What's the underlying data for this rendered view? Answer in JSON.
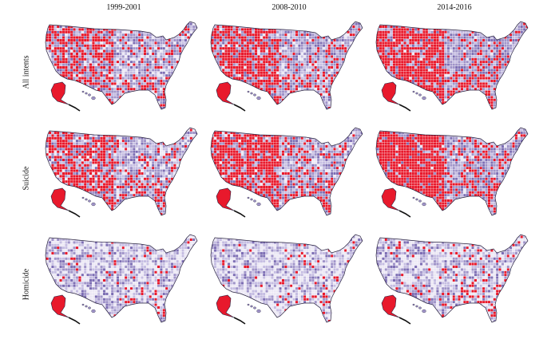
{
  "figure": {
    "columns": [
      "1999-2001",
      "2008-2010",
      "2014-2016"
    ],
    "rows": [
      "All intents",
      "Suicide",
      "Homicide"
    ],
    "colors": {
      "low": "#ece8f5",
      "mid_low": "#c5bde2",
      "mid": "#a094c9",
      "high": "#7d6eb4",
      "hotspot": "#e8192c",
      "border": "#ffffff",
      "outline": "#2a2440"
    },
    "hotspot_intensity": [
      [
        0.3,
        0.36,
        0.44
      ],
      [
        0.34,
        0.42,
        0.5
      ],
      [
        0.05,
        0.04,
        0.08
      ]
    ],
    "shade_intensity": [
      [
        0.55,
        0.6,
        0.65
      ],
      [
        0.55,
        0.6,
        0.65
      ],
      [
        0.35,
        0.28,
        0.32
      ]
    ]
  }
}
